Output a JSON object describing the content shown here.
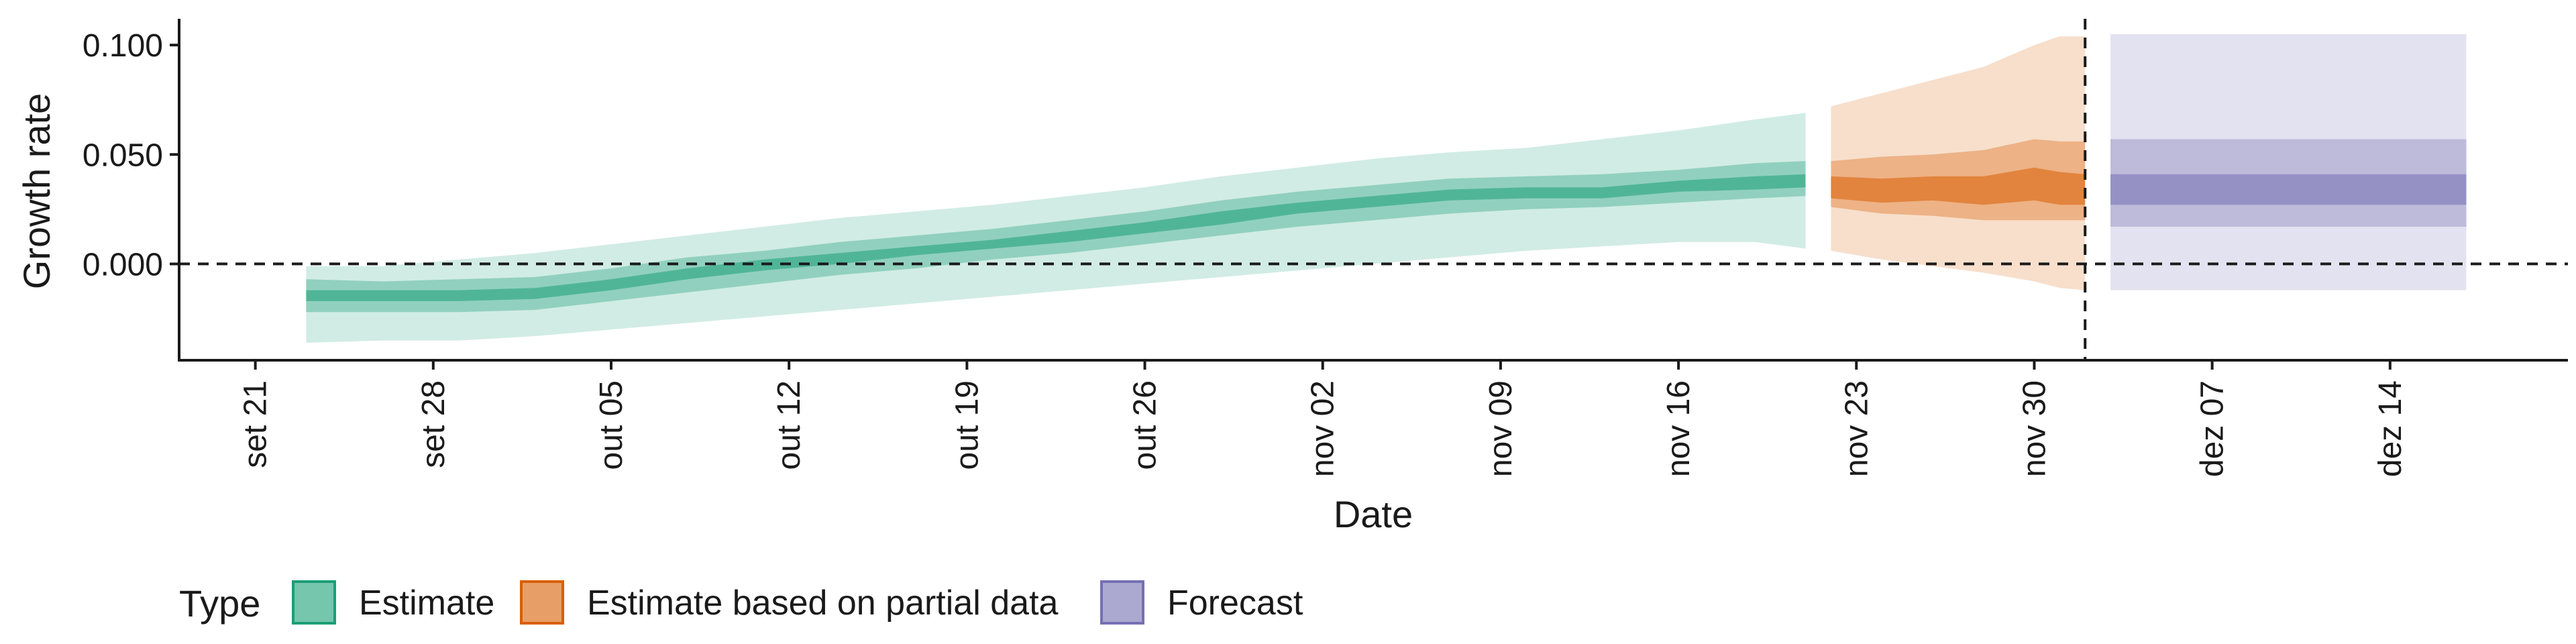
{
  "chart_data": {
    "type": "area",
    "xlabel": "Date",
    "ylabel": "Growth rate",
    "x_range": [
      "2020-09-18",
      "2020-12-21"
    ],
    "ylim": [
      -0.044,
      0.112
    ],
    "y_ticks": [
      0.0,
      0.05,
      0.1
    ],
    "y_tick_labels": [
      "0.000",
      "0.050",
      "0.100"
    ],
    "x_ticks": [
      "2020-09-21",
      "2020-09-28",
      "2020-10-05",
      "2020-10-12",
      "2020-10-19",
      "2020-10-26",
      "2020-11-02",
      "2020-11-09",
      "2020-11-16",
      "2020-11-23",
      "2020-11-30",
      "2020-12-07",
      "2020-12-14"
    ],
    "x_tick_labels": [
      "set 21",
      "set 28",
      "out 05",
      "out 12",
      "out 19",
      "out 26",
      "nov 02",
      "nov 09",
      "nov 16",
      "nov 23",
      "nov 30",
      "dez 07",
      "dez 14"
    ],
    "reference_lines": [
      {
        "axis": "y",
        "value": 0.0,
        "style": "dashed"
      },
      {
        "axis": "x",
        "value": "2020-12-02",
        "style": "dashed"
      }
    ],
    "grid": false,
    "legend": {
      "title": "Type",
      "position": "bottom"
    },
    "colors": {
      "Estimate": "#1b9e77",
      "Estimate based on partial data": "#d95f02",
      "Forecast": "#7570b3"
    },
    "series": [
      {
        "name": "Estimate",
        "x": [
          "2020-09-23",
          "2020-09-26",
          "2020-09-29",
          "2020-10-02",
          "2020-10-05",
          "2020-10-08",
          "2020-10-11",
          "2020-10-14",
          "2020-10-17",
          "2020-10-20",
          "2020-10-23",
          "2020-10-26",
          "2020-10-29",
          "2020-11-01",
          "2020-11-04",
          "2020-11-07",
          "2020-11-10",
          "2020-11-13",
          "2020-11-16",
          "2020-11-19",
          "2020-11-21"
        ],
        "lower_90": [
          -0.036,
          -0.035,
          -0.035,
          -0.033,
          -0.03,
          -0.027,
          -0.024,
          -0.021,
          -0.018,
          -0.015,
          -0.012,
          -0.009,
          -0.006,
          -0.003,
          0.0,
          0.003,
          0.006,
          0.008,
          0.01,
          0.01,
          0.007
        ],
        "lower_50": [
          -0.022,
          -0.022,
          -0.022,
          -0.021,
          -0.017,
          -0.013,
          -0.009,
          -0.005,
          -0.002,
          0.002,
          0.005,
          0.009,
          0.013,
          0.017,
          0.02,
          0.023,
          0.025,
          0.026,
          0.028,
          0.03,
          0.031
        ],
        "lower_20": [
          -0.017,
          -0.017,
          -0.017,
          -0.016,
          -0.012,
          -0.007,
          -0.003,
          0.0,
          0.004,
          0.007,
          0.01,
          0.014,
          0.018,
          0.023,
          0.026,
          0.029,
          0.03,
          0.03,
          0.033,
          0.034,
          0.035
        ],
        "upper_20": [
          -0.012,
          -0.012,
          -0.012,
          -0.011,
          -0.007,
          -0.002,
          0.002,
          0.005,
          0.008,
          0.011,
          0.015,
          0.019,
          0.024,
          0.028,
          0.031,
          0.034,
          0.035,
          0.035,
          0.038,
          0.04,
          0.041
        ],
        "upper_50": [
          -0.007,
          -0.008,
          -0.007,
          -0.006,
          -0.002,
          0.003,
          0.006,
          0.01,
          0.013,
          0.016,
          0.02,
          0.024,
          0.029,
          0.033,
          0.036,
          0.039,
          0.04,
          0.041,
          0.043,
          0.046,
          0.047
        ],
        "upper_90": [
          -0.001,
          -0.001,
          0.002,
          0.005,
          0.009,
          0.013,
          0.017,
          0.021,
          0.024,
          0.027,
          0.031,
          0.035,
          0.04,
          0.044,
          0.048,
          0.051,
          0.053,
          0.057,
          0.061,
          0.066,
          0.069
        ]
      },
      {
        "name": "Estimate based on partial data",
        "x": [
          "2020-11-22",
          "2020-11-24",
          "2020-11-26",
          "2020-11-28",
          "2020-11-30",
          "2020-12-01",
          "2020-12-02"
        ],
        "lower_90": [
          0.006,
          0.002,
          -0.001,
          -0.004,
          -0.008,
          -0.011,
          -0.012
        ],
        "lower_50": [
          0.026,
          0.023,
          0.022,
          0.02,
          0.02,
          0.02,
          0.02
        ],
        "lower_20": [
          0.03,
          0.028,
          0.029,
          0.027,
          0.029,
          0.027,
          0.027
        ],
        "upper_20": [
          0.04,
          0.039,
          0.04,
          0.04,
          0.044,
          0.042,
          0.041
        ],
        "upper_50": [
          0.047,
          0.049,
          0.05,
          0.052,
          0.057,
          0.056,
          0.056
        ],
        "upper_90": [
          0.072,
          0.078,
          0.084,
          0.09,
          0.1,
          0.104,
          0.104
        ]
      },
      {
        "name": "Forecast",
        "x": [
          "2020-12-03",
          "2020-12-17"
        ],
        "lower_90": [
          -0.012,
          -0.012
        ],
        "lower_50": [
          0.017,
          0.017
        ],
        "lower_20": [
          0.027,
          0.027
        ],
        "upper_20": [
          0.041,
          0.041
        ],
        "upper_50": [
          0.057,
          0.057
        ],
        "upper_90": [
          0.105,
          0.105
        ]
      }
    ]
  }
}
